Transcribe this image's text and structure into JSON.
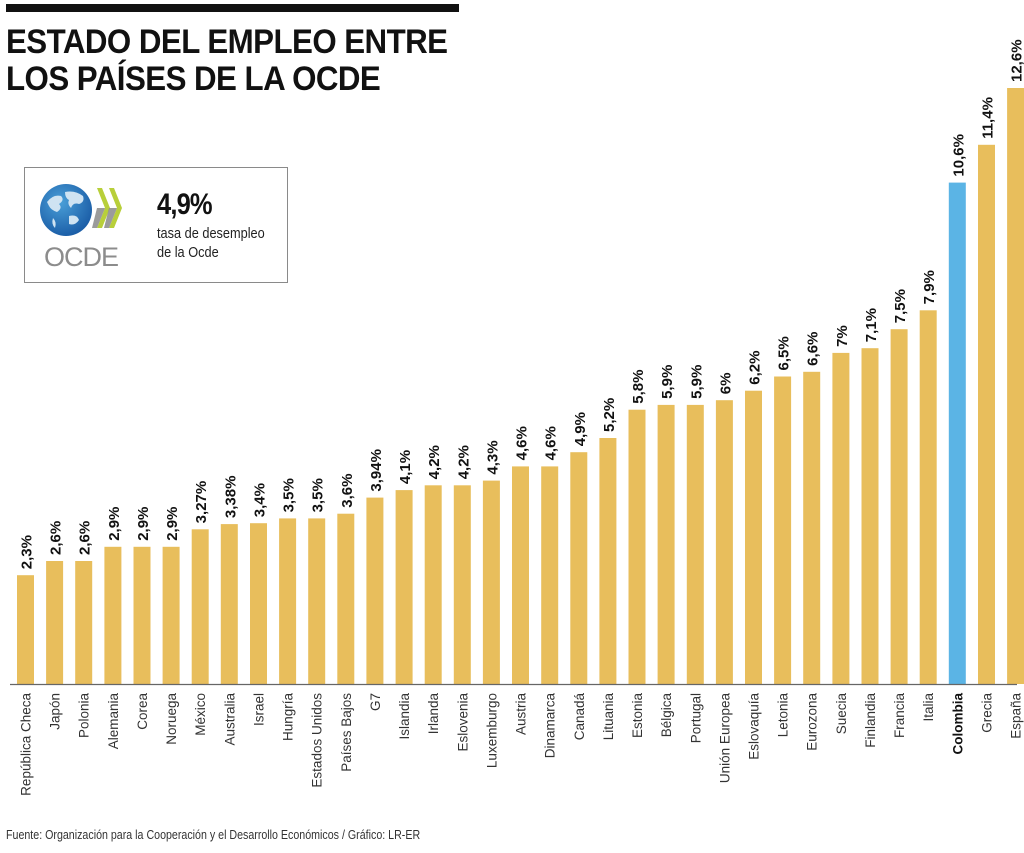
{
  "header": {
    "title_line1": "ESTADO DEL EMPLEO ENTRE",
    "title_line2": "LOS PAÍSES DE LA OCDE"
  },
  "info_box": {
    "logo_text": "OCDE",
    "value": "4,9%",
    "desc_line1": "tasa de desempleo",
    "desc_line2": "de la Ocde"
  },
  "colors": {
    "bar_default": "#E8BE5C",
    "bar_highlight": "#5BB4E5",
    "axis": "#666666",
    "text": "#111111"
  },
  "chart_data": {
    "type": "bar",
    "title": "ESTADO DEL EMPLEO ENTRE LOS PAÍSES DE LA OCDE",
    "xlabel": "",
    "ylabel": "",
    "ylim": [
      0,
      12.6
    ],
    "grid": false,
    "value_unit": "%",
    "highlight_category": "Colombia",
    "categories": [
      "República Checa",
      "Japón",
      "Polonia",
      "Alemania",
      "Corea",
      "Noruega",
      "México",
      "Australia",
      "Israel",
      "Hungría",
      "Estados Unidos",
      "Países Bajos",
      "G7",
      "Islandia",
      "Irlanda",
      "Eslovenia",
      "Luxemburgo",
      "Austria",
      "Dinamarca",
      "Canadá",
      "Lituania",
      "Estonia",
      "Bélgica",
      "Portugal",
      "Unión Europea",
      "Eslovaquía",
      "Letonia",
      "Eurozona",
      "Suecia",
      "Finlandia",
      "Francia",
      "Italia",
      "Colombia",
      "Grecia",
      "España"
    ],
    "values": [
      2.3,
      2.6,
      2.6,
      2.9,
      2.9,
      2.9,
      3.27,
      3.38,
      3.4,
      3.5,
      3.5,
      3.6,
      3.94,
      4.1,
      4.2,
      4.2,
      4.3,
      4.6,
      4.6,
      4.9,
      5.2,
      5.8,
      5.9,
      5.9,
      6.0,
      6.2,
      6.5,
      6.6,
      7.0,
      7.1,
      7.5,
      7.9,
      10.6,
      11.4,
      12.6
    ],
    "labels": [
      "2,3%",
      "2,6%",
      "2,6%",
      "2,9%",
      "2,9%",
      "2,9%",
      "3,27%",
      "3,38%",
      "3,4%",
      "3,5%",
      "3,5%",
      "3,6%",
      "3,94%",
      "4,1%",
      "4,2%",
      "4,2%",
      "4,3%",
      "4,6%",
      "4,6%",
      "4,9%",
      "5,2%",
      "5,8%",
      "5,9%",
      "5,9%",
      "6%",
      "6,2%",
      "6,5%",
      "6,6%",
      "7%",
      "7,1%",
      "7,5%",
      "7,9%",
      "10,6%",
      "11,4%",
      "12,6%"
    ]
  },
  "footer": {
    "source": "Fuente: Organización para la Cooperación y el Desarrollo Económicos / Gráfico: LR-ER"
  }
}
